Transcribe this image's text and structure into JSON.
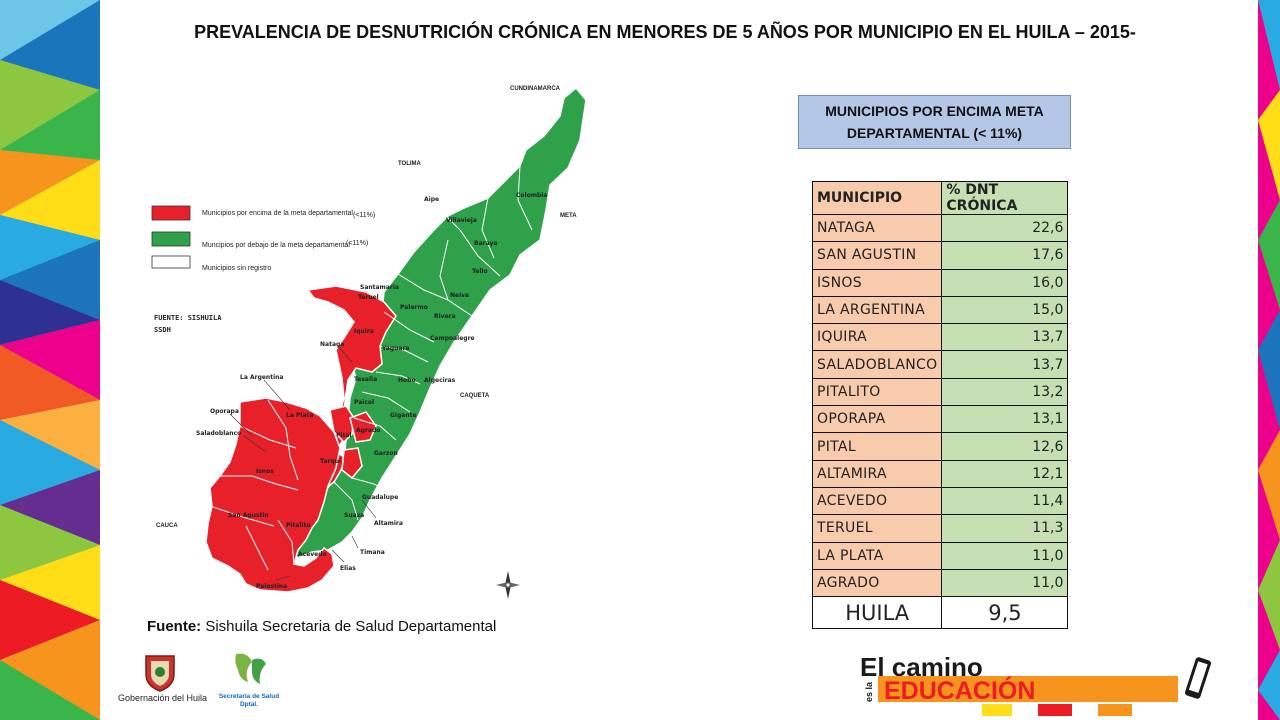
{
  "title": "PREVALENCIA DE DESNUTRICIÓN CRÓNICA EN MENORES DE   5 AÑOS POR MUNICIPIO EN EL HUILA – 2015-",
  "meta_box": {
    "line1": "MUNICIPIOS POR ENCIMA META",
    "line2": "DEPARTAMENTAL  (< 11%)"
  },
  "table": {
    "headers": [
      "MUNICIPIO",
      "% DNT CRÓNICA"
    ],
    "rows": [
      {
        "municipio": "NATAGA",
        "valor": "22,6"
      },
      {
        "municipio": "SAN AGUSTIN",
        "valor": "17,6"
      },
      {
        "municipio": "ISNOS",
        "valor": "16,0"
      },
      {
        "municipio": "LA ARGENTINA",
        "valor": "15,0"
      },
      {
        "municipio": "IQUIRA",
        "valor": "13,7"
      },
      {
        "municipio": "SALADOBLANCO",
        "valor": "13,7"
      },
      {
        "municipio": "PITALITO",
        "valor": "13,2"
      },
      {
        "municipio": "OPORAPA",
        "valor": "13,1"
      },
      {
        "municipio": "PITAL",
        "valor": "12,6"
      },
      {
        "municipio": "ALTAMIRA",
        "valor": "12,1"
      },
      {
        "municipio": "ACEVEDO",
        "valor": "11,4"
      },
      {
        "municipio": "TERUEL",
        "valor": "11,3"
      },
      {
        "municipio": "LA PLATA",
        "valor": "11,0"
      },
      {
        "municipio": "AGRADO",
        "valor": "11,0"
      }
    ],
    "total": {
      "municipio": "HUILA",
      "valor": "9,5"
    }
  },
  "fuente": {
    "label": "Fuente:",
    "text": " Sishuila Secretaria de Salud Departamental"
  },
  "map": {
    "legend": {
      "above": "Municipios por encima de la meta departamental",
      "above_threshold": "(<11%)",
      "below": "Muncipios por debajo de la meta departamental",
      "below_threshold": "(<11%)",
      "none": "Municipios sin registro"
    },
    "source_line1": "FUENTE: SISHUILA",
    "source_line2": "SSDH",
    "neighbors": [
      "CUNDINAMARCA",
      "TOLIMA",
      "META",
      "CAQUETA",
      "CAUCA"
    ],
    "labels_outside": [
      "Nataga",
      "La Argentina",
      "Oporapa",
      "Saladoblanco",
      "Altamira",
      "Timana",
      "Elias",
      "Palestina"
    ],
    "labels_inside": [
      "Colombia",
      "Aipe",
      "Villavieja",
      "Baraya",
      "Tello",
      "Santamaria",
      "Palermo",
      "Neiva",
      "Rivera",
      "Teruel",
      "Iquira",
      "Yaguara",
      "Campoalegre",
      "Tesalia",
      "Hobo",
      "Algeciras",
      "Paicol",
      "Gigante",
      "La Plata",
      "Pital",
      "Agrado",
      "Garzon",
      "Tarqui",
      "Isnos",
      "Suaza",
      "Guadalupe",
      "San Agustin",
      "Pitalito",
      "Acevedo"
    ],
    "colors": {
      "above": "#e8202a",
      "below": "#2ea14a",
      "none": "#ffffff"
    }
  },
  "logos": {
    "gobernacion": "Gobernación del Huila",
    "salud_line1": "Secretaria de Salud",
    "salud_line2": "Dptal.",
    "educacion_top": "El camino",
    "educacion_side": "es la",
    "educacion_main": "EDUCACIÓN"
  }
}
